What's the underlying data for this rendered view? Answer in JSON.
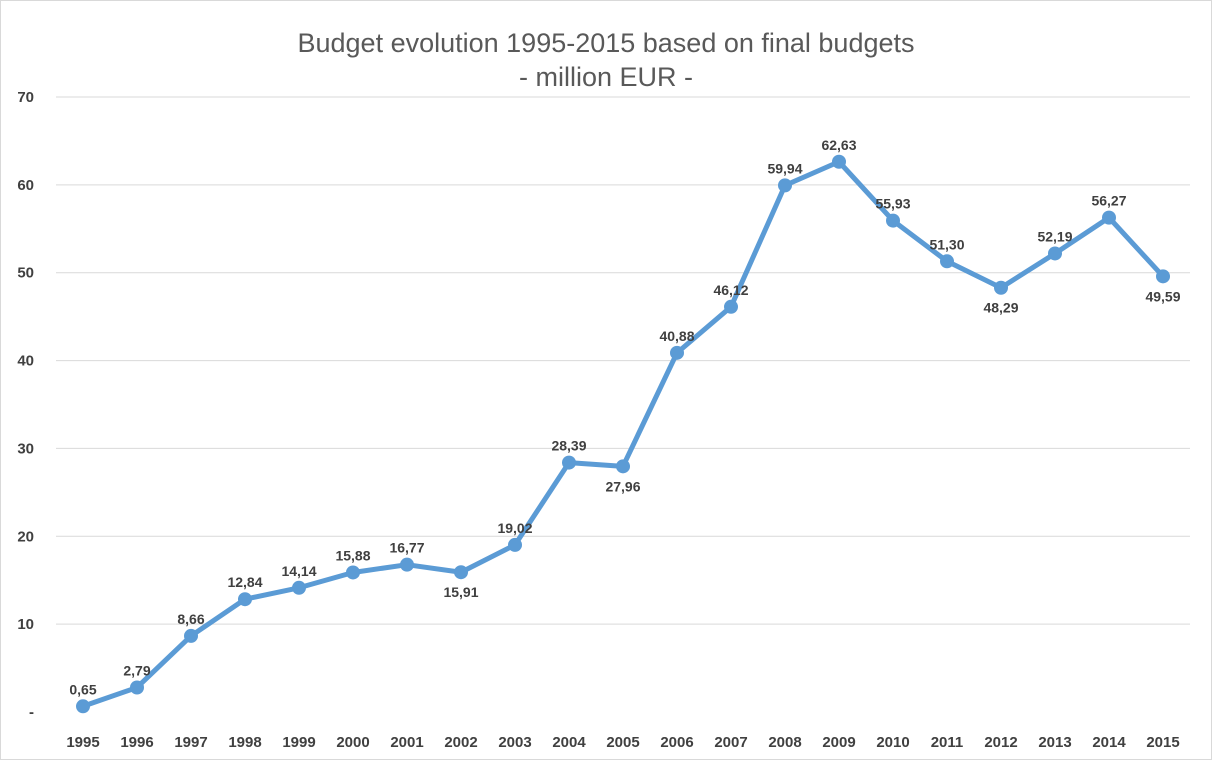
{
  "chart_data": {
    "type": "line",
    "title": "Budget evolution 1995-2015 based on final budgets",
    "subtitle": "- million EUR -",
    "xlabel": "",
    "ylabel": "",
    "categories": [
      "1995",
      "1996",
      "1997",
      "1998",
      "1999",
      "2000",
      "2001",
      "2002",
      "2003",
      "2004",
      "2005",
      "2006",
      "2007",
      "2008",
      "2009",
      "2010",
      "2011",
      "2012",
      "2013",
      "2014",
      "2015"
    ],
    "series": [
      {
        "values": [
          0.65,
          2.79,
          8.66,
          12.84,
          14.14,
          15.88,
          16.77,
          15.91,
          19.02,
          28.39,
          27.96,
          40.88,
          46.12,
          59.94,
          62.63,
          55.93,
          51.3,
          48.29,
          52.19,
          56.27,
          49.59
        ],
        "labels": [
          "0,65",
          "2,79",
          "8,66",
          "12,84",
          "14,14",
          "15,88",
          "16,77",
          "15,91",
          "19,02",
          "28,39",
          "27,96",
          "40,88",
          "46,12",
          "59,94",
          "62,63",
          "55,93",
          "51,30",
          "48,29",
          "52,19",
          "56,27",
          "49,59"
        ],
        "color": "#5b9bd5"
      }
    ],
    "ylim": [
      0,
      70
    ],
    "yticks": [
      0,
      10,
      20,
      30,
      40,
      50,
      60,
      70
    ],
    "ytick_labels": [
      "-",
      "10",
      "20",
      "30",
      "40",
      "50",
      "60",
      "70"
    ],
    "grid": true,
    "legend": "none"
  }
}
